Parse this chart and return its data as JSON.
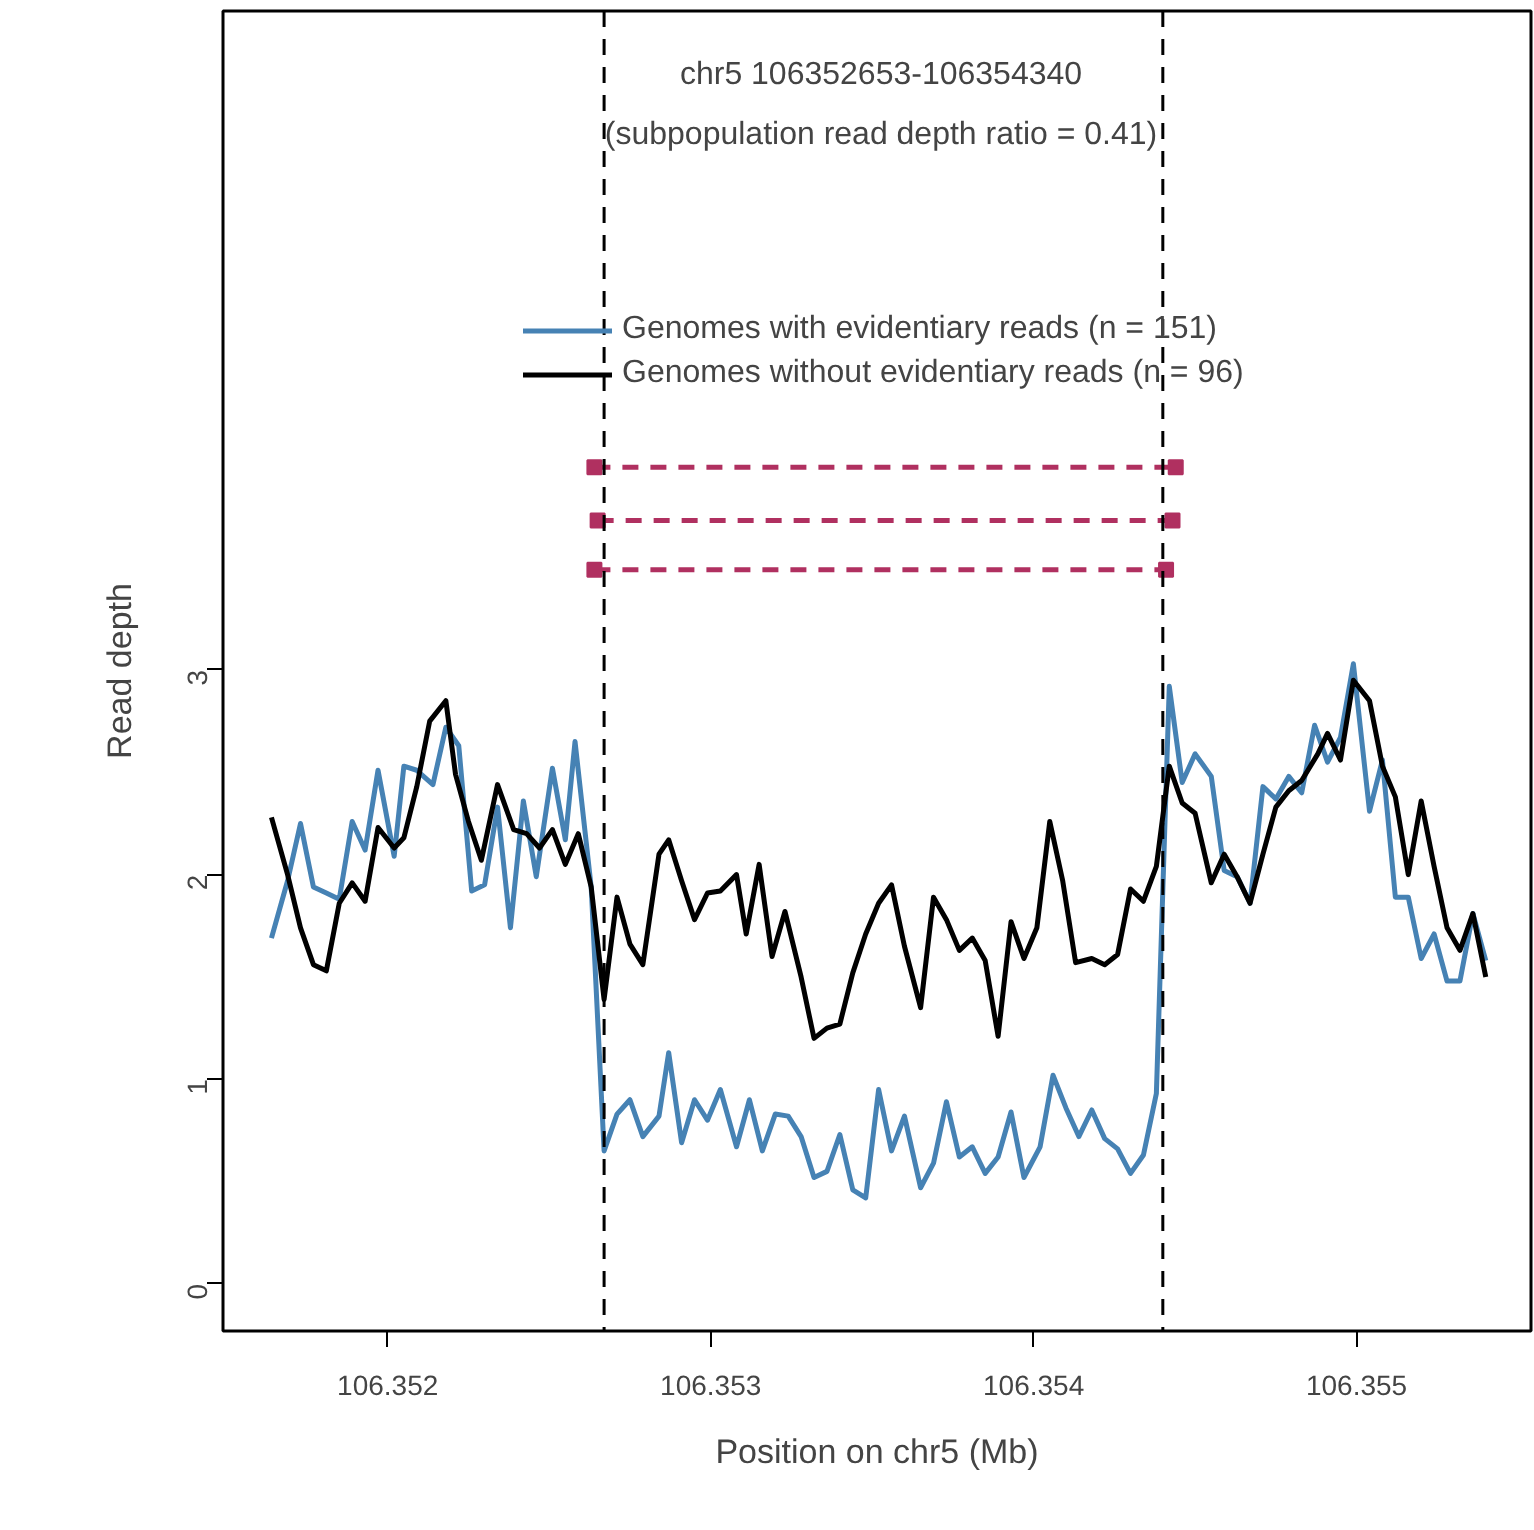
{
  "chart_data": {
    "type": "line",
    "title": "chr5 106352653-106354340",
    "subtitle": "(subpopulation read depth ratio = 0.41)",
    "xlabel": "Position on chr5 (Mb)",
    "ylabel": "Read depth",
    "xlim": [
      106.35149,
      106.35554
    ],
    "ylim": [
      -0.23,
      6.22
    ],
    "xticks": [
      106.352,
      106.353,
      106.354,
      106.355
    ],
    "yticks": [
      0,
      1,
      2,
      3
    ],
    "grid": false,
    "legend": "top left",
    "marker": "none",
    "line_style": "solid",
    "series": [
      {
        "name": "Genomes with evidentiary reads (n = 151)",
        "color": "#4682b4",
        "x": [
          106.35164,
          106.35169,
          106.35173,
          106.35177,
          106.35181,
          106.35185,
          106.35189,
          106.35193,
          106.35197,
          106.35202,
          106.35205,
          106.35209,
          106.35214,
          106.35218,
          106.35222,
          106.35226,
          106.3523,
          106.35234,
          106.35238,
          106.35242,
          106.35246,
          106.35251,
          106.35255,
          106.35258,
          106.35263,
          106.35267,
          106.35271,
          106.35275,
          106.35279,
          106.35284,
          106.35287,
          106.35291,
          106.35295,
          106.35299,
          106.35303,
          106.35308,
          106.35312,
          106.35316,
          106.3532,
          106.35324,
          106.35328,
          106.35332,
          106.35336,
          106.3534,
          106.35344,
          106.35348,
          106.35352,
          106.35356,
          106.3536,
          106.35365,
          106.35369,
          106.35373,
          106.35377,
          106.35381,
          106.35385,
          106.35389,
          106.35393,
          106.35397,
          106.35402,
          106.35406,
          106.3541,
          106.35414,
          106.35418,
          106.35422,
          106.35426,
          106.3543,
          106.35434,
          106.35438,
          106.35442,
          106.35446,
          106.3545,
          106.35455,
          106.35459,
          106.35463,
          106.35467,
          106.35471,
          106.35475,
          106.35479,
          106.35483,
          106.35487,
          106.35491,
          106.35495,
          106.35499,
          106.35504,
          106.35508,
          106.35512,
          106.35516,
          106.3552,
          106.35524,
          106.35528,
          106.35532,
          106.35536,
          106.3554
        ],
        "values": [
          1.69,
          1.97,
          2.25,
          1.94,
          1.91,
          1.88,
          2.26,
          2.12,
          2.51,
          2.09,
          2.53,
          2.51,
          2.44,
          2.72,
          2.63,
          1.92,
          1.95,
          2.33,
          1.74,
          2.36,
          1.99,
          2.52,
          2.17,
          2.65,
          1.94,
          0.65,
          0.83,
          0.9,
          0.72,
          0.82,
          1.13,
          0.69,
          0.9,
          0.8,
          0.95,
          0.67,
          0.9,
          0.65,
          0.83,
          0.82,
          0.72,
          0.52,
          0.55,
          0.73,
          0.46,
          0.42,
          0.95,
          0.65,
          0.82,
          0.47,
          0.59,
          0.89,
          0.62,
          0.67,
          0.54,
          0.62,
          0.84,
          0.52,
          0.67,
          1.02,
          0.86,
          0.72,
          0.85,
          0.71,
          0.66,
          0.54,
          0.63,
          0.93,
          2.92,
          2.45,
          2.59,
          2.48,
          2.02,
          1.99,
          1.86,
          2.43,
          2.37,
          2.48,
          2.4,
          2.73,
          2.55,
          2.67,
          3.03,
          2.31,
          2.56,
          1.89,
          1.89,
          1.59,
          1.71,
          1.48,
          1.48,
          1.81,
          1.58
        ]
      },
      {
        "name": "Genomes without evidentiary reads (n = 96)",
        "color": "#000000",
        "x": [
          106.35164,
          106.35169,
          106.35173,
          106.35177,
          106.35181,
          106.35185,
          106.35189,
          106.35193,
          106.35197,
          106.35202,
          106.35205,
          106.35209,
          106.35213,
          106.35218,
          106.35221,
          106.35225,
          106.35229,
          106.35234,
          106.35239,
          106.35243,
          106.35247,
          106.35251,
          106.35255,
          106.35259,
          106.35263,
          106.35267,
          106.35271,
          106.35275,
          106.35279,
          106.35284,
          106.35287,
          106.35291,
          106.35295,
          106.35299,
          106.35303,
          106.35308,
          106.35311,
          106.35315,
          106.35319,
          106.35323,
          106.35328,
          106.35332,
          106.35336,
          106.3534,
          106.35344,
          106.35348,
          106.35352,
          106.35356,
          106.3536,
          106.35365,
          106.35369,
          106.35373,
          106.35377,
          106.35381,
          106.35385,
          106.35389,
          106.35393,
          106.35397,
          106.35401,
          106.35405,
          106.35409,
          106.35413,
          106.35418,
          106.35422,
          106.35426,
          106.3543,
          106.35434,
          106.35438,
          106.35442,
          106.35446,
          106.3545,
          106.35455,
          106.35459,
          106.35463,
          106.35467,
          106.35471,
          106.35475,
          106.35479,
          106.35483,
          106.35488,
          106.35491,
          106.35495,
          106.35499,
          106.35504,
          106.35508,
          106.35512,
          106.35516,
          106.3552,
          106.35524,
          106.35528,
          106.35532,
          106.35536,
          106.3554
        ],
        "values": [
          2.28,
          2.0,
          1.74,
          1.56,
          1.53,
          1.86,
          1.96,
          1.87,
          2.23,
          2.13,
          2.18,
          2.43,
          2.75,
          2.85,
          2.49,
          2.26,
          2.07,
          2.44,
          2.22,
          2.2,
          2.13,
          2.22,
          2.05,
          2.2,
          1.94,
          1.39,
          1.89,
          1.66,
          1.56,
          2.1,
          2.17,
          1.97,
          1.78,
          1.91,
          1.92,
          2.0,
          1.71,
          2.05,
          1.6,
          1.82,
          1.5,
          1.2,
          1.25,
          1.27,
          1.52,
          1.71,
          1.86,
          1.95,
          1.65,
          1.35,
          1.89,
          1.78,
          1.63,
          1.69,
          1.58,
          1.21,
          1.77,
          1.59,
          1.74,
          2.26,
          1.97,
          1.57,
          1.59,
          1.56,
          1.61,
          1.93,
          1.87,
          2.04,
          2.53,
          2.35,
          2.3,
          1.96,
          2.1,
          1.99,
          1.86,
          2.1,
          2.33,
          2.41,
          2.46,
          2.59,
          2.69,
          2.56,
          2.95,
          2.85,
          2.53,
          2.38,
          2.0,
          2.36,
          2.04,
          1.74,
          1.63,
          1.81,
          1.5
        ]
      },
      {
        "color": "#b03060",
        "marker": "square",
        "line_style": "dashed",
        "x": [
          106.35264,
          106.35444
        ],
        "values": [
          3.99,
          3.99
        ]
      },
      {
        "color": "#b03060",
        "marker": "square",
        "line_style": "dashed",
        "x": [
          106.35265,
          106.35443
        ],
        "values": [
          3.73,
          3.73
        ]
      },
      {
        "color": "#b03060",
        "marker": "square",
        "line_style": "dashed",
        "x": [
          106.35264,
          106.35441
        ],
        "values": [
          3.49,
          3.49
        ]
      }
    ],
    "ref_lines": [
      {
        "axis": "x",
        "value": 106.35267,
        "color": "#000000",
        "line_style": "dashed"
      },
      {
        "axis": "x",
        "value": 106.3544,
        "color": "#000000",
        "line_style": "dashed"
      }
    ]
  }
}
